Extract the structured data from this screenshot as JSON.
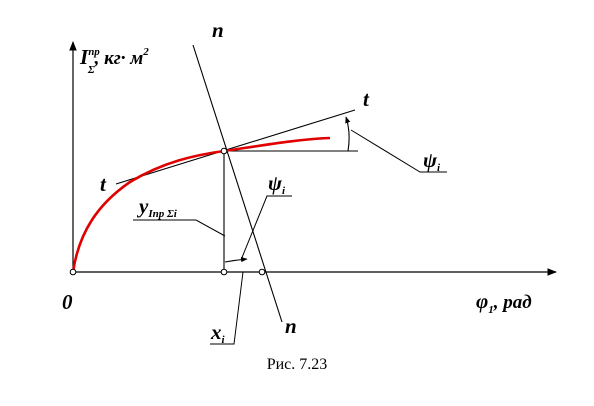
{
  "diagram": {
    "axis_y_label": {
      "main": "I",
      "superscript": "пр",
      "subscript": "Σ",
      "units": ", кг· м",
      "units_power": "2"
    },
    "axis_x_label": {
      "main": "φ",
      "subscript": "1",
      "units": ", рад"
    },
    "origin_label": "0",
    "tangent_label_upper": "t",
    "tangent_label_lower": "t",
    "normal_label_upper": "n",
    "normal_label_lower": "n",
    "psi_label_right": {
      "main": "ψ",
      "subscript": "i"
    },
    "psi_label_middle": {
      "main": "ψ",
      "subscript": "i"
    },
    "y_label": {
      "main": "y",
      "subscript": "Iпр Σi"
    },
    "x_label": {
      "main": "x",
      "subscript": "i"
    },
    "curve_color": "#e00000",
    "line_color": "#000000"
  },
  "caption": "Рис.  7.23"
}
